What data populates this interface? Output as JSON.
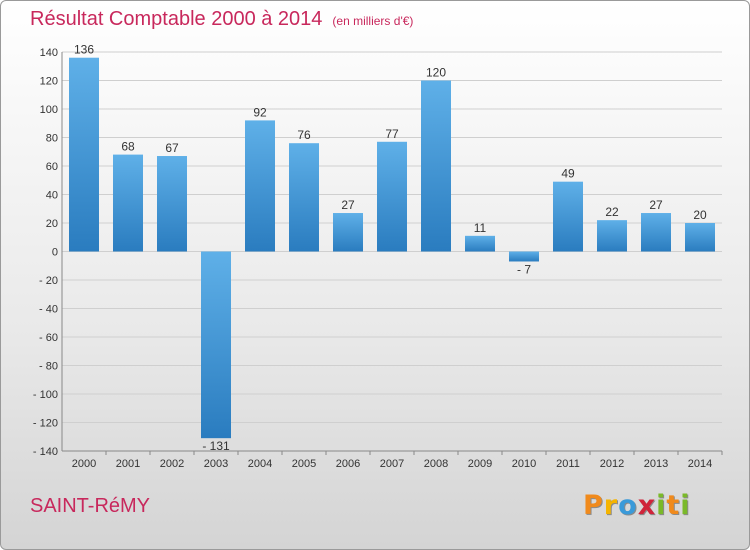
{
  "chart_data": {
    "type": "bar",
    "title": "Résultat Comptable 2000 à 2014",
    "subtitle": "(en milliers d'€)",
    "categories": [
      "2000",
      "2001",
      "2002",
      "2003",
      "2004",
      "2005",
      "2006",
      "2007",
      "2008",
      "2009",
      "2010",
      "2011",
      "2012",
      "2013",
      "2014"
    ],
    "values": [
      136,
      68,
      67,
      -131,
      92,
      76,
      27,
      77,
      120,
      11,
      -7,
      49,
      22,
      27,
      20
    ],
    "ylim": [
      -140,
      140
    ],
    "yticks": [
      140,
      120,
      100,
      80,
      60,
      40,
      20,
      0,
      -20,
      -40,
      -60,
      -80,
      -100,
      -120,
      -140
    ],
    "ytick_labels": [
      "140",
      "120",
      "100",
      "80",
      "60",
      "40",
      "20",
      "0",
      "- 20",
      "- 40",
      "- 60",
      "- 80",
      "- 100",
      "- 120",
      "- 140"
    ],
    "value_labels": [
      "136",
      "68",
      "67",
      "- 131",
      "92",
      "76",
      "27",
      "77",
      "120",
      "11",
      "- 7",
      "49",
      "22",
      "27",
      "20"
    ],
    "grid": true,
    "xlabel": "",
    "ylabel": ""
  },
  "footer": {
    "commune": "SAINT-RéMY",
    "logo_letters": [
      "P",
      "r",
      "o",
      "x",
      "i",
      "t",
      "i"
    ],
    "logo_colors": [
      "#f08a1c",
      "#f5b400",
      "#3a9ad9",
      "#d0243a",
      "#7ab929",
      "#f08a1c",
      "#7ab929"
    ]
  },
  "colors": {
    "bar_light": "#5fb0e8",
    "bar_dark": "#2a7cbf",
    "title": "#c8285c"
  }
}
